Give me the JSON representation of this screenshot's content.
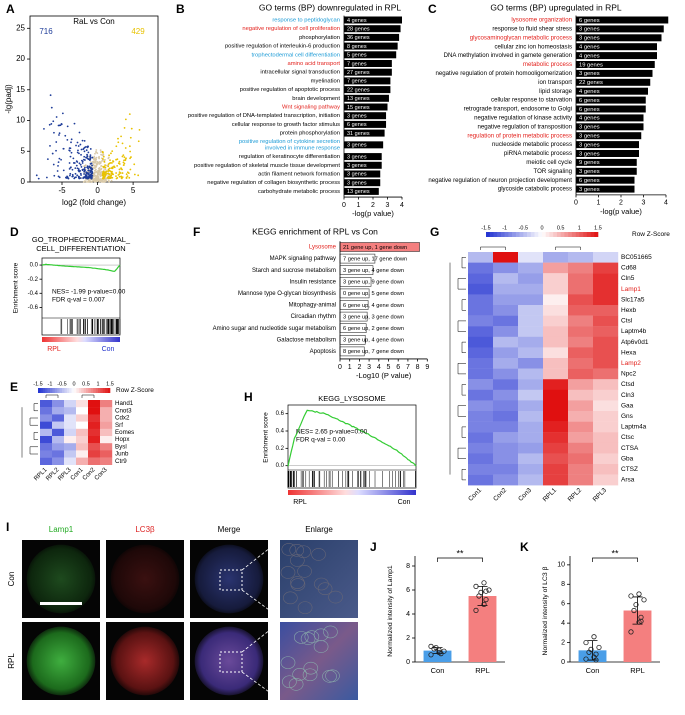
{
  "figure": {
    "A": {
      "letter": "A",
      "title": "RaL vs Con",
      "down_count": 716,
      "up_count": 429,
      "down_color": "#1f3d99",
      "up_color": "#e8c200",
      "xlabel": "log2 (fold change)",
      "ylabel": "-lg(padj)",
      "xlim": [
        -9.5,
        8.5
      ],
      "ylim": [
        0,
        27
      ],
      "xticks": [
        -5,
        0,
        5
      ],
      "yticks": [
        0,
        5,
        10,
        15,
        20,
        25
      ]
    },
    "B": {
      "letter": "B",
      "title": "GO terms (BP) downregulated in RPL",
      "xlabel": "-log(p value)",
      "xlim": [
        0,
        4.3
      ],
      "xticks": [
        0,
        1,
        2,
        3,
        4
      ],
      "bar_color": "#000000",
      "terms": [
        "response to peptidoglycan",
        "negative regulation of cell proliferation",
        "phosphorylation",
        "positive regulation of interleukin-6 production",
        "trophectodermal cell differentiation",
        "amino acid transport",
        "intracellular signal transduction",
        "myelination",
        "positive regulation of apoptotic process",
        "brain development",
        "Wnt signaling pathway",
        "positive regulation of DNA-templated transcription, initiation",
        "cellular response to growth factor stimulus",
        "protein phosphorylation",
        [
          "positive regulation of cytokine secretion",
          "involved in immune response"
        ],
        "regulation of keratinocyte differentiation",
        "positive regulation of skeletal muscle tissue development",
        "actin filament network formation",
        "negative regulation of collagen biosynthetic process",
        "carbohydrate metabolic process"
      ],
      "term_colors": [
        "#1a9ad6",
        "#e3211c",
        "#000000",
        "#000000",
        "#1a9ad6",
        "#e3211c",
        "#000000",
        "#000000",
        "#000000",
        "#000000",
        "#e3211c",
        "#000000",
        "#000000",
        "#000000",
        "#1a9ad6",
        "#000000",
        "#000000",
        "#000000",
        "#000000",
        "#000000"
      ],
      "values": [
        4.0,
        3.9,
        3.8,
        3.7,
        3.6,
        3.3,
        3.3,
        3.2,
        3.2,
        3.1,
        3.0,
        2.9,
        2.9,
        2.8,
        2.7,
        2.6,
        2.6,
        2.5,
        2.5,
        2.4
      ],
      "gene_labels": [
        "4 genes",
        "28 genes",
        "36 genes",
        "8 genes",
        "5 genes",
        "7 genes",
        "27 genes",
        "7 genes",
        "22 genes",
        "13 genes",
        "15 genes",
        "3 genes",
        "6 genes",
        "31 genes",
        "3 genes",
        "3 genes",
        "3 genes",
        "3 genes",
        "3 genes",
        "13 genes"
      ]
    },
    "C": {
      "letter": "C",
      "title": "GO terms (BP) upregulated in RPL",
      "xlabel": "-log(p value)",
      "xlim": [
        0,
        4.3
      ],
      "xticks": [
        0,
        1,
        2,
        3,
        4
      ],
      "bar_color": "#000000",
      "terms": [
        "lysosome organization",
        "response to fluid shear stress",
        "glycosaminoglycan metabolic process",
        "cellular zinc ion homeostasis",
        "DNA methylation involved in gamete generation",
        "metabolic process",
        "negative regulation of protein homooligomerization",
        "ion transport",
        "lipid storage",
        "cellular response to starvation",
        "retrograde transport, endosome to Golgi",
        "negative regulation of kinase activity",
        "negative regulation of transposition",
        "regulation of protein metabolic process",
        "nucleoside metabolic process",
        "piRNA metabolic process",
        "meiotic cell cycle",
        "TOR signaling",
        "negative regulation of neuron projection development",
        "glycoside catabolic process"
      ],
      "term_colors": [
        "#e3211c",
        "#000000",
        "#e3211c",
        "#000000",
        "#000000",
        "#e3211c",
        "#000000",
        "#000000",
        "#000000",
        "#000000",
        "#000000",
        "#000000",
        "#000000",
        "#e3211c",
        "#000000",
        "#000000",
        "#000000",
        "#000000",
        "#000000",
        "#000000"
      ],
      "values": [
        4.1,
        3.9,
        3.8,
        3.6,
        3.6,
        3.5,
        3.4,
        3.3,
        3.2,
        3.1,
        3.1,
        3.0,
        3.0,
        2.9,
        2.8,
        2.8,
        2.7,
        2.7,
        2.6,
        2.6
      ],
      "gene_labels": [
        "6 genes",
        "3 genes",
        "3 genes",
        "4 genes",
        "4 genes",
        "19 genes",
        "3 genes",
        "22 genes",
        "4 genes",
        "6 genes",
        "6 genes",
        "4 genes",
        "3 genes",
        "3 genes",
        "3 genes",
        "3 genes",
        "9 genes",
        "3 genes",
        "6 genes",
        "3 genes"
      ]
    },
    "D": {
      "letter": "D",
      "title": [
        "GO_TROPHECTODERMAL_",
        "CELL_DIFFERENTIATION"
      ],
      "stats": "NES= -1.99  p-value=0.00",
      "fdr": "FDR q-val = 0.007",
      "ylabel": "Enrichment score",
      "ylim": [
        -0.75,
        0.1
      ],
      "yticks": [
        {
          "value": 0,
          "label": "0.0"
        },
        {
          "value": -0.2,
          "label": "-0.2"
        },
        {
          "value": -0.4,
          "label": "-0.4"
        },
        {
          "value": -0.6,
          "label": "-0.6"
        }
      ],
      "left_label": "RPL",
      "right_label": "Con",
      "left_color": "#e3211c",
      "right_color": "#2233cc",
      "line_color": "#33cc33"
    },
    "E": {
      "letter": "E",
      "key_title": "Row Z-Score",
      "key_ticks": [
        -1.5,
        -1,
        -0.5,
        0,
        0.5,
        1,
        1.5
      ],
      "genes": [
        "Hand1",
        "Cnot3",
        "Cdx2",
        "Srf",
        "Eomes",
        "Hopx",
        "Bysl",
        "Junb",
        "Ctr9"
      ],
      "samples": [
        "RPL1",
        "RPL2",
        "RPL3",
        "Con1",
        "Con2",
        "Con3"
      ],
      "z": [
        [
          -1.2,
          -0.8,
          -0.3,
          0.2,
          1.5,
          0.8
        ],
        [
          -1.0,
          -0.6,
          -0.5,
          0.0,
          1.6,
          0.5
        ],
        [
          -0.8,
          -1.1,
          -0.2,
          0.3,
          1.3,
          0.5
        ],
        [
          -1.3,
          -0.4,
          -0.2,
          0.0,
          1.4,
          0.6
        ],
        [
          -0.5,
          -1.2,
          -0.3,
          0.4,
          1.3,
          0.4
        ],
        [
          -1.3,
          -0.5,
          0.1,
          0.3,
          1.4,
          0.1
        ],
        [
          -1.0,
          -0.7,
          -0.6,
          0.4,
          1.1,
          0.8
        ],
        [
          -0.9,
          -1.0,
          -0.4,
          0.1,
          1.2,
          1.0
        ],
        [
          -1.1,
          -0.8,
          -0.2,
          0.5,
          0.9,
          0.8
        ]
      ]
    },
    "F": {
      "letter": "F",
      "title": "KEGG enrichment of RPL vs Con",
      "xlabel": "-Log10 (P value)",
      "xlim": [
        0,
        9
      ],
      "xticks": [
        0,
        1,
        2,
        3,
        4,
        5,
        6,
        7,
        8,
        9
      ],
      "terms": [
        "Lysosome",
        "MAPK signaling pathway",
        "Starch and sucrose metabolism",
        "Insulin resistance",
        "Mannose type O-glycan biosynthesis",
        "Mitophagy-animal",
        "Circadian rhythm",
        "Amino sugar and nucleotide sugar metabolism",
        "Galactose metabolism",
        "Apoptosis"
      ],
      "term_colors": [
        "#e3211c",
        "#000000",
        "#000000",
        "#000000",
        "#000000",
        "#000000",
        "#000000",
        "#000000",
        "#000000",
        "#000000"
      ],
      "bar_colors": [
        "#f47f7f",
        "#ffffff",
        "#ffffff",
        "#ffffff",
        "#ffffff",
        "#ffffff",
        "#ffffff",
        "#ffffff",
        "#ffffff",
        "#ffffff"
      ],
      "values": [
        8.2,
        3.6,
        3.4,
        3.2,
        3.0,
        2.9,
        2.8,
        2.7,
        2.6,
        2.5
      ],
      "gene_labels": [
        "21 gene up, 1 gene down",
        "7 gene up, 17 gene down",
        "3 gene up, 4 gene down",
        "3 gene up, 9 gene down",
        "0 gene up, 5 gene down",
        "6 gene up, 4 gene down",
        "3 gene up, 3 gene down",
        "6 gene up, 2 gene down",
        "3 gene up, 4 gene down",
        "8 gene up, 7 gene down"
      ]
    },
    "G": {
      "letter": "G",
      "key_title": "Row Z-Score",
      "key_ticks": [
        -1.5,
        -1,
        -0.5,
        0,
        0.5,
        1,
        1.5
      ],
      "samples": [
        "Con1",
        "Con2",
        "Con3",
        "RPL1",
        "RPL2",
        "RPL3"
      ],
      "genes": [
        "BC051665",
        "Cd68",
        "Cln5",
        "Lamp1",
        "Slc17a5",
        "Hexb",
        "Ctsl",
        "Laptm4b",
        "Atp6v0d1",
        "Hexa",
        "Lamp2",
        "Npc2",
        "Ctsd",
        "Cln3",
        "Gaa",
        "Gns",
        "Laptm4a",
        "Ctsc",
        "CTSA",
        "Gba",
        "CTSZ",
        "Arsa"
      ],
      "gene_colors": [
        "#000000",
        "#000000",
        "#000000",
        "#e3211c",
        "#000000",
        "#000000",
        "#000000",
        "#000000",
        "#000000",
        "#000000",
        "#e3211c",
        "#000000",
        "#000000",
        "#000000",
        "#000000",
        "#000000",
        "#000000",
        "#000000",
        "#000000",
        "#000000",
        "#000000",
        "#000000"
      ],
      "z": [
        [
          -0.5,
          2.0,
          -0.2,
          -0.6,
          -0.5,
          -0.3
        ],
        [
          -1.0,
          -0.8,
          -0.6,
          0.6,
          0.8,
          1.2
        ],
        [
          -1.1,
          -0.5,
          -0.7,
          0.3,
          0.9,
          1.3
        ],
        [
          -1.2,
          -0.6,
          -0.6,
          0.3,
          0.9,
          1.3
        ],
        [
          -1.0,
          -0.7,
          -0.7,
          0.1,
          1.1,
          1.3
        ],
        [
          -1.0,
          -0.8,
          -0.4,
          0.2,
          1.0,
          1.0
        ],
        [
          -0.9,
          -1.0,
          -0.4,
          0.3,
          0.8,
          1.1
        ],
        [
          -1.1,
          -0.8,
          -0.4,
          0.4,
          0.9,
          1.0
        ],
        [
          -1.2,
          -0.5,
          -0.6,
          0.4,
          0.8,
          1.1
        ],
        [
          -1.1,
          -0.7,
          -0.5,
          0.2,
          1.0,
          1.1
        ],
        [
          -1.0,
          -0.6,
          -0.8,
          0.4,
          0.9,
          1.1
        ],
        [
          -1.0,
          -0.8,
          -0.5,
          0.4,
          1.0,
          0.9
        ],
        [
          -0.8,
          -1.0,
          -0.6,
          1.4,
          0.6,
          0.4
        ],
        [
          -1.0,
          -0.8,
          -0.4,
          1.5,
          0.4,
          0.3
        ],
        [
          -0.8,
          -0.9,
          -0.6,
          1.5,
          0.6,
          0.2
        ],
        [
          -0.9,
          -1.0,
          -0.5,
          1.6,
          0.5,
          0.3
        ],
        [
          -0.9,
          -0.9,
          -0.6,
          1.4,
          0.7,
          0.3
        ],
        [
          -1.0,
          -0.7,
          -0.6,
          1.3,
          0.6,
          0.4
        ],
        [
          -0.9,
          -0.8,
          -0.7,
          1.2,
          0.8,
          0.4
        ],
        [
          -1.0,
          -0.8,
          -0.5,
          1.1,
          0.9,
          0.3
        ],
        [
          -0.9,
          -0.9,
          -0.6,
          1.2,
          0.8,
          0.4
        ],
        [
          -1.0,
          -0.8,
          -0.5,
          1.2,
          0.8,
          0.3
        ]
      ]
    },
    "H": {
      "letter": "H",
      "title": "KEGG_LYSOSOME",
      "stats": "NES= 2.65 p-value=0.00",
      "fdr": "FDR q-val = 0.00",
      "ylabel": "Enrichment score",
      "ylim": [
        -0.05,
        0.7
      ],
      "yticks": [
        {
          "value": 0,
          "label": "0.0"
        },
        {
          "value": 0.2,
          "label": "0.2"
        },
        {
          "value": 0.4,
          "label": "0.4"
        },
        {
          "value": 0.6,
          "label": "0.6"
        }
      ],
      "left_label": "RPL",
      "right_label": "Con",
      "left_color": "#000000",
      "right_color": "#000000",
      "line_color": "#33cc33"
    },
    "I": {
      "letter": "I",
      "columns": [
        "Lamp1",
        "LC3β",
        "Merge",
        "Enlarge"
      ],
      "column_colors": [
        "#22aa22",
        "#dd2222",
        "#000000",
        "#000000"
      ],
      "rows": [
        "Con",
        "RPL"
      ]
    },
    "J": {
      "letter": "J",
      "ylabel": "Normalized intensity of Lamp1",
      "categories": [
        "Con",
        "RPL"
      ],
      "colors": [
        "#4a9ee8",
        "#f47f7f"
      ],
      "means": [
        0.95,
        5.5
      ],
      "errors": [
        0.25,
        0.8
      ],
      "points": [
        [
          0.6,
          0.8,
          0.7,
          1.1,
          1.2,
          0.9,
          1.3,
          1.0
        ],
        [
          4.3,
          4.8,
          5.2,
          5.5,
          5.8,
          6.0,
          6.3,
          6.6,
          5.9
        ]
      ],
      "ylim": [
        0,
        8.5
      ],
      "yticks": [
        0,
        2,
        4,
        6,
        8
      ],
      "significance": "**"
    },
    "K": {
      "letter": "K",
      "ylabel": "Normalized intensity of LC3 β",
      "categories": [
        "Con",
        "RPL"
      ],
      "colors": [
        "#4a9ee8",
        "#f47f7f"
      ],
      "means": [
        1.2,
        5.3
      ],
      "errors": [
        1.0,
        1.4
      ],
      "points": [
        [
          0.3,
          0.5,
          0.8,
          1.0,
          1.3,
          1.5,
          2.0,
          2.6,
          0.2
        ],
        [
          3.1,
          4.1,
          4.6,
          5.3,
          5.9,
          6.4,
          6.8,
          7.0,
          4.2
        ]
      ],
      "ylim": [
        0,
        10.5
      ],
      "yticks": [
        0,
        2,
        4,
        6,
        8,
        10
      ],
      "significance": "**"
    }
  }
}
